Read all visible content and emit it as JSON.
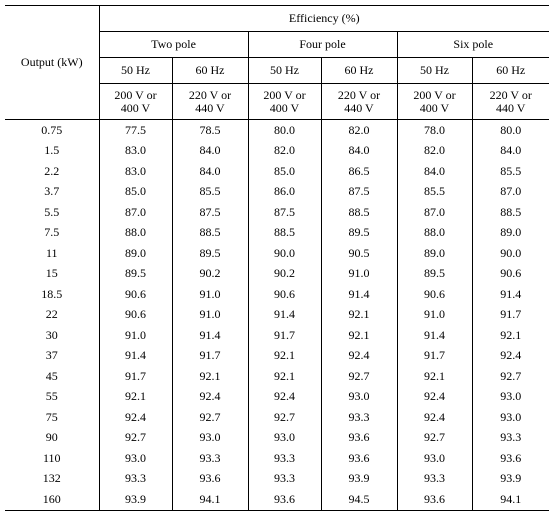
{
  "header": {
    "output_label": "Output (kW)",
    "efficiency_label": "Efficiency (%)",
    "poles": [
      "Two pole",
      "Four pole",
      "Six pole"
    ],
    "freqs": [
      "50 Hz",
      "60 Hz",
      "50 Hz",
      "60 Hz",
      "50 Hz",
      "60 Hz"
    ],
    "volts": [
      [
        "200 V or",
        "400 V"
      ],
      [
        "220 V or",
        "440 V"
      ],
      [
        "200 V or",
        "400 V"
      ],
      [
        "220 V or",
        "440 V"
      ],
      [
        "200 V or",
        "400 V"
      ],
      [
        "220 V or",
        "440 V"
      ]
    ]
  },
  "rows": [
    [
      "0.75",
      "77.5",
      "78.5",
      "80.0",
      "82.0",
      "78.0",
      "80.0"
    ],
    [
      "1.5",
      "83.0",
      "84.0",
      "82.0",
      "84.0",
      "82.0",
      "84.0"
    ],
    [
      "2.2",
      "83.0",
      "84.0",
      "85.0",
      "86.5",
      "84.0",
      "85.5"
    ],
    [
      "3.7",
      "85.0",
      "85.5",
      "86.0",
      "87.5",
      "85.5",
      "87.0"
    ],
    [
      "5.5",
      "87.0",
      "87.5",
      "87.5",
      "88.5",
      "87.0",
      "88.5"
    ],
    [
      "7.5",
      "88.0",
      "88.5",
      "88.5",
      "89.5",
      "88.0",
      "89.0"
    ],
    [
      "11",
      "89.0",
      "89.5",
      "90.0",
      "90.5",
      "89.0",
      "90.0"
    ],
    [
      "15",
      "89.5",
      "90.2",
      "90.2",
      "91.0",
      "89.5",
      "90.6"
    ],
    [
      "18.5",
      "90.6",
      "91.0",
      "90.6",
      "91.4",
      "90.6",
      "91.4"
    ],
    [
      "22",
      "90.6",
      "91.0",
      "91.4",
      "92.1",
      "91.0",
      "91.7"
    ],
    [
      "30",
      "91.0",
      "91.4",
      "91.7",
      "92.1",
      "91.4",
      "92.1"
    ],
    [
      "37",
      "91.4",
      "91.7",
      "92.1",
      "92.4",
      "91.7",
      "92.4"
    ],
    [
      "45",
      "91.7",
      "92.1",
      "92.1",
      "92.7",
      "92.1",
      "92.7"
    ],
    [
      "55",
      "92.1",
      "92.4",
      "92.4",
      "93.0",
      "92.4",
      "93.0"
    ],
    [
      "75",
      "92.4",
      "92.7",
      "92.7",
      "93.3",
      "92.4",
      "93.0"
    ],
    [
      "90",
      "92.7",
      "93.0",
      "93.0",
      "93.6",
      "92.7",
      "93.3"
    ],
    [
      "110",
      "93.0",
      "93.3",
      "93.3",
      "93.6",
      "93.0",
      "93.6"
    ],
    [
      "132",
      "93.3",
      "93.6",
      "93.3",
      "93.9",
      "93.3",
      "93.9"
    ],
    [
      "160",
      "93.9",
      "94.1",
      "93.6",
      "94.5",
      "93.6",
      "94.1"
    ]
  ]
}
